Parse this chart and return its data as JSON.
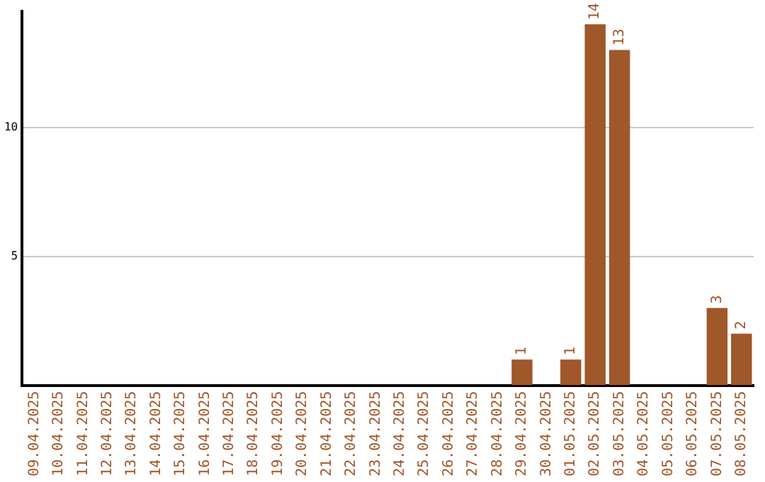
{
  "chart_data": {
    "type": "bar",
    "categories": [
      "09.04.2025",
      "10.04.2025",
      "11.04.2025",
      "12.04.2025",
      "13.04.2025",
      "14.04.2025",
      "15.04.2025",
      "16.04.2025",
      "17.04.2025",
      "18.04.2025",
      "19.04.2025",
      "20.04.2025",
      "21.04.2025",
      "22.04.2025",
      "23.04.2025",
      "24.04.2025",
      "25.04.2025",
      "26.04.2025",
      "27.04.2025",
      "28.04.2025",
      "29.04.2025",
      "30.04.2025",
      "01.05.2025",
      "02.05.2025",
      "03.05.2025",
      "04.05.2025",
      "05.05.2025",
      "06.05.2025",
      "07.05.2025",
      "08.05.2025"
    ],
    "values": [
      0,
      0,
      0,
      0,
      0,
      0,
      0,
      0,
      0,
      0,
      0,
      0,
      0,
      0,
      0,
      0,
      0,
      0,
      0,
      0,
      1,
      0,
      1,
      14,
      13,
      0,
      0,
      0,
      3,
      2
    ],
    "value_labels": [
      null,
      null,
      null,
      null,
      null,
      null,
      null,
      null,
      null,
      null,
      null,
      null,
      null,
      null,
      null,
      null,
      null,
      null,
      null,
      null,
      "1",
      null,
      "1",
      "14",
      "13",
      null,
      null,
      null,
      "3",
      "2"
    ],
    "color": "#a0572a",
    "ylim": [
      0,
      14.5
    ],
    "yticks": [
      5,
      10
    ],
    "grid": "y",
    "legend": false
  }
}
